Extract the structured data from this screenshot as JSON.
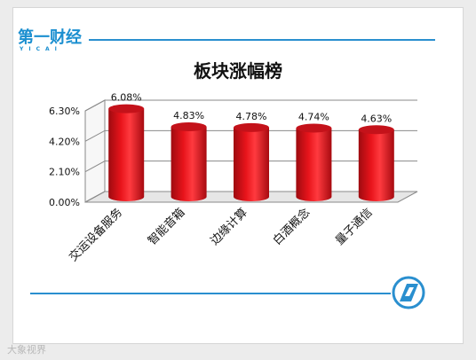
{
  "branding": {
    "logo_text": "第一财经",
    "logo_sub": "YICAI",
    "watermark": "大象视界"
  },
  "colors": {
    "bar": "#e8141b",
    "bar_dark": "#a50a0f",
    "accent": "#2a8fcf"
  },
  "chart_data": {
    "type": "bar",
    "title": "板块涨幅榜",
    "categories": [
      "交运设备服务",
      "智能音箱",
      "边缘计算",
      "白酒概念",
      "量子通信"
    ],
    "values": [
      6.08,
      4.83,
      4.78,
      4.74,
      4.63
    ],
    "value_labels": [
      "6.08%",
      "4.83%",
      "4.78%",
      "4.74%",
      "4.63%"
    ],
    "yticks": [
      "0.00%",
      "2.10%",
      "4.20%",
      "6.30%"
    ],
    "ytick_values": [
      0,
      2.1,
      4.2,
      6.3
    ],
    "ylim": [
      0,
      6.3
    ],
    "grid": true,
    "xlabel": "",
    "ylabel": ""
  }
}
